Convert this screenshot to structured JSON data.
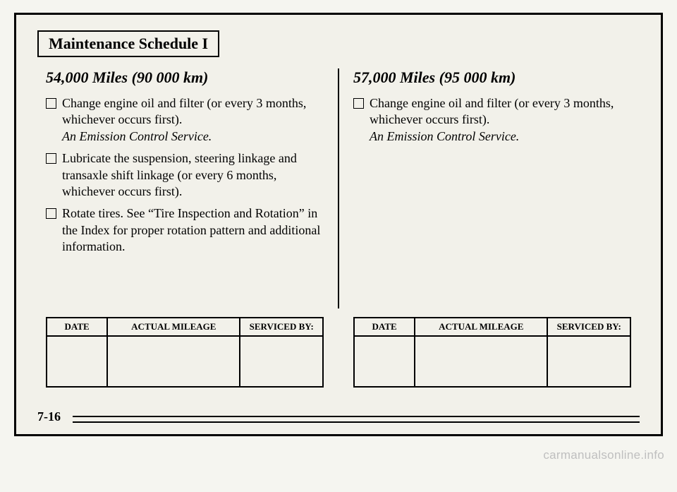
{
  "title": "Maintenance Schedule I",
  "left": {
    "heading": "54,000 Miles (90 000 km)",
    "items": [
      {
        "main": "Change engine oil and filter (or every 3 months, whichever occurs first).",
        "note": "An Emission Control Service."
      },
      {
        "main": "Lubricate the suspension, steering linkage and transaxle shift linkage (or every 6 months, whichever occurs first).",
        "note": ""
      },
      {
        "main": "Rotate tires. See “Tire Inspection and Rotation” in the Index for proper rotation pattern and additional information.",
        "note": ""
      }
    ]
  },
  "right": {
    "heading": "57,000 Miles (95 000 km)",
    "items": [
      {
        "main": "Change engine oil and filter (or every 3 months, whichever occurs first).",
        "note": "An Emission Control Service."
      }
    ]
  },
  "table": {
    "headers": [
      "DATE",
      "ACTUAL MILEAGE",
      "SERVICED BY:"
    ],
    "col_widths": [
      "22%",
      "48%",
      "30%"
    ]
  },
  "page_number": "7-16",
  "watermark": "carmanualsonline.info"
}
